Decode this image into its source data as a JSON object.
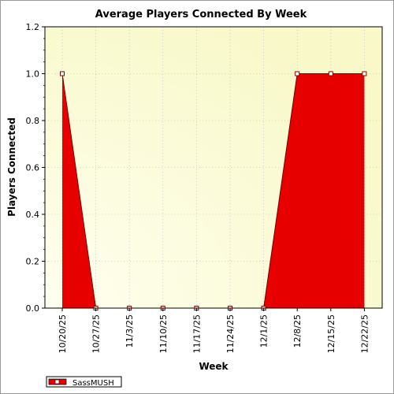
{
  "chart_data": {
    "type": "area",
    "title": "Average Players Connected By Week",
    "xlabel": "Week",
    "ylabel": "Players Connected",
    "categories": [
      "10/20/25",
      "10/27/25",
      "11/3/25",
      "11/10/25",
      "11/17/25",
      "11/24/25",
      "12/1/25",
      "12/8/25",
      "12/15/25",
      "12/22/25"
    ],
    "series": [
      {
        "name": "SassMUSH",
        "values": [
          1.0,
          0.0,
          0.0,
          0.0,
          0.0,
          0.0,
          0.0,
          1.0,
          1.0,
          1.0
        ],
        "color": "#e60000"
      }
    ],
    "ylim": [
      0,
      1.2
    ],
    "yticks": [
      0.0,
      0.2,
      0.4,
      0.6,
      0.8,
      1.0,
      1.2
    ],
    "ytick_labels": [
      "0.0",
      "0.2",
      "0.4",
      "0.6",
      "0.8",
      "1.0",
      "1.2"
    ],
    "grid": true,
    "legend_position": "bottom-left",
    "plot_background": [
      "#fffff0",
      "#f8f8c8"
    ]
  }
}
